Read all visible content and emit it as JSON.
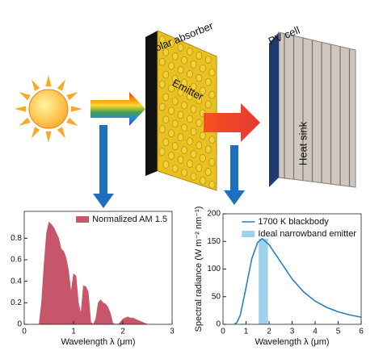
{
  "diagram": {
    "labels": [
      "Solar absorber",
      "Emitter",
      "PV cell",
      "Heat sink"
    ]
  },
  "chart_data": [
    {
      "type": "area",
      "xlabel": "Wavelength λ (μm)",
      "xlim": [
        0,
        3
      ],
      "xticks": [
        0,
        1,
        2,
        3
      ],
      "ylim": [
        0,
        1.05
      ],
      "yticks": [
        0,
        0.2,
        0.4,
        0.6,
        0.8
      ],
      "legend": "upper right",
      "series": [
        {
          "name": "Normalized AM 1.5",
          "color": "#c8566b",
          "type": "area",
          "x": [
            0.3,
            0.35,
            0.4,
            0.45,
            0.5,
            0.55,
            0.6,
            0.65,
            0.7,
            0.75,
            0.8,
            0.85,
            0.9,
            0.95,
            1.0,
            1.05,
            1.1,
            1.15,
            1.2,
            1.25,
            1.3,
            1.35,
            1.4,
            1.45,
            1.5,
            1.55,
            1.6,
            1.65,
            1.7,
            1.75,
            1.8,
            1.85,
            1.9,
            1.95,
            2.0,
            2.05,
            2.1,
            2.15,
            2.2,
            2.25,
            2.3,
            2.35,
            2.4,
            2.45,
            2.5
          ],
          "values": [
            0,
            0.2,
            0.55,
            0.85,
            0.95,
            0.93,
            0.9,
            0.85,
            0.8,
            0.7,
            0.68,
            0.62,
            0.5,
            0.3,
            0.47,
            0.45,
            0.2,
            0.1,
            0.36,
            0.35,
            0.3,
            0.02,
            0,
            0.05,
            0.2,
            0.23,
            0.2,
            0.19,
            0.16,
            0.1,
            0.01,
            0,
            0,
            0.02,
            0.05,
            0.06,
            0.07,
            0.06,
            0.06,
            0.05,
            0.04,
            0.03,
            0.02,
            0.01,
            0
          ]
        }
      ]
    },
    {
      "type": "line",
      "xlabel": "Wavelength λ (μm)",
      "ylabel": "Spectral radiance (W m⁻² nm⁻¹)",
      "xlim": [
        0,
        6
      ],
      "xticks": [
        0,
        1,
        2,
        3,
        4,
        5,
        6
      ],
      "ylim": [
        0,
        200
      ],
      "yticks": [
        0,
        50,
        100,
        150,
        200
      ],
      "legend": "upper right",
      "series": [
        {
          "name": "1700 K blackbody",
          "color": "#2a7fc0",
          "type": "line",
          "x": [
            0.5,
            0.6,
            0.75,
            1.0,
            1.25,
            1.5,
            1.7,
            2.0,
            2.5,
            3.0,
            3.5,
            4.0,
            4.5,
            5.0,
            5.5,
            6.0
          ],
          "values": [
            0.45,
            3,
            16.6,
            66.5,
            118.5,
            148,
            155,
            144,
            113,
            82,
            58.5,
            42,
            30.6,
            22.7,
            17,
            13
          ]
        },
        {
          "name": "Ideal narrowband emitter",
          "color": "#9fd0ec",
          "type": "band",
          "xrange": [
            1.55,
            1.95
          ],
          "value": 155
        }
      ]
    }
  ]
}
